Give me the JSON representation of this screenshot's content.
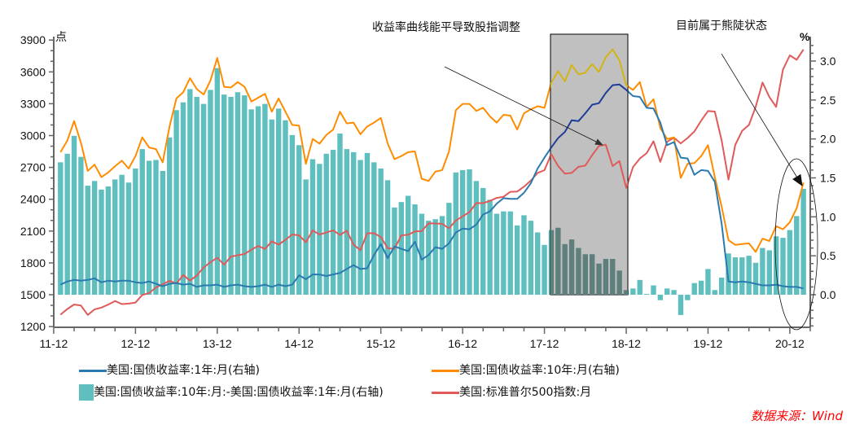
{
  "chart_data": {
    "type": "bar+line",
    "start_month": "2012-01",
    "frequency": "monthly",
    "left_axis": {
      "unit": "点",
      "ylim": [
        1200,
        3900
      ],
      "ticks": [
        1200,
        1500,
        1800,
        2100,
        2400,
        2700,
        3000,
        3300,
        3600,
        3900
      ]
    },
    "right_axis": {
      "unit": "%",
      "ylim": [
        -0.42,
        3.3
      ],
      "ticks": [
        "0.0",
        "0.5",
        "1.0",
        "1.5",
        "2.0",
        "2.5",
        "3.0"
      ]
    },
    "x_ticks": [
      "11-12",
      "12-12",
      "13-12",
      "14-12",
      "15-12",
      "16-12",
      "17-12",
      "18-12",
      "19-12",
      "20-12"
    ],
    "series": [
      {
        "name": "美国:国债收益率:1年:月(右轴)",
        "type": "line",
        "axis": "right",
        "color": "#2a7ab0",
        "highlight_color": "#1f3c99",
        "values": [
          0.13,
          0.17,
          0.19,
          0.18,
          0.19,
          0.21,
          0.16,
          0.18,
          0.17,
          0.18,
          0.18,
          0.16,
          0.15,
          0.17,
          0.14,
          0.11,
          0.14,
          0.15,
          0.13,
          0.14,
          0.1,
          0.12,
          0.12,
          0.13,
          0.1,
          0.12,
          0.13,
          0.11,
          0.1,
          0.11,
          0.13,
          0.1,
          0.13,
          0.11,
          0.13,
          0.25,
          0.2,
          0.26,
          0.26,
          0.24,
          0.26,
          0.28,
          0.33,
          0.38,
          0.33,
          0.34,
          0.51,
          0.65,
          0.47,
          0.62,
          0.59,
          0.56,
          0.68,
          0.45,
          0.51,
          0.61,
          0.59,
          0.66,
          0.8,
          0.85,
          0.84,
          0.9,
          1.03,
          1.07,
          1.17,
          1.24,
          1.23,
          1.23,
          1.31,
          1.43,
          1.62,
          1.76,
          1.89,
          2.01,
          2.09,
          2.24,
          2.23,
          2.33,
          2.44,
          2.46,
          2.59,
          2.69,
          2.7,
          2.63,
          2.55,
          2.54,
          2.4,
          2.39,
          2.21,
          1.92,
          1.96,
          1.76,
          1.75,
          1.54,
          1.6,
          1.59,
          1.45,
          0.91,
          0.17,
          0.16,
          0.17,
          0.16,
          0.14,
          0.12,
          0.12,
          0.13,
          0.11,
          0.1,
          0.1,
          0.08
        ]
      },
      {
        "name": "美国:国债收益率:10年:月(右轴)",
        "type": "line",
        "axis": "right",
        "color": "#ff8c00",
        "highlight_color": "#d4b414",
        "values": [
          1.83,
          1.98,
          2.23,
          1.95,
          1.59,
          1.67,
          1.51,
          1.57,
          1.65,
          1.72,
          1.62,
          1.78,
          2.02,
          1.89,
          1.87,
          1.7,
          2.16,
          2.52,
          2.6,
          2.78,
          2.64,
          2.57,
          2.75,
          3.04,
          2.67,
          2.66,
          2.73,
          2.67,
          2.48,
          2.53,
          2.58,
          2.35,
          2.52,
          2.35,
          2.18,
          2.17,
          1.68,
          2.0,
          1.94,
          2.05,
          2.12,
          2.35,
          2.2,
          2.21,
          2.06,
          2.16,
          2.21,
          2.27,
          1.94,
          1.74,
          1.78,
          1.83,
          1.84,
          1.49,
          1.46,
          1.58,
          1.6,
          1.84,
          2.37,
          2.45,
          2.45,
          2.36,
          2.4,
          2.29,
          2.21,
          2.31,
          2.3,
          2.12,
          2.33,
          2.38,
          2.42,
          2.4,
          2.72,
          2.87,
          2.74,
          2.95,
          2.83,
          2.85,
          2.96,
          2.86,
          3.05,
          3.15,
          3.01,
          2.69,
          2.63,
          2.73,
          2.41,
          2.51,
          2.14,
          2.0,
          2.02,
          1.5,
          1.68,
          1.69,
          1.78,
          1.92,
          1.51,
          1.13,
          0.7,
          0.64,
          0.65,
          0.66,
          0.55,
          0.72,
          0.69,
          0.88,
          0.84,
          0.93,
          1.11,
          1.44
        ]
      },
      {
        "name": "美国:国债收益率:10年:月:-美国:国债收益率:1年:月(右轴)",
        "type": "bar",
        "axis": "right",
        "color": "#5fbfbf",
        "highlight_color": "#5e7f7c",
        "values": [
          1.7,
          1.81,
          2.04,
          1.77,
          1.4,
          1.46,
          1.35,
          1.39,
          1.48,
          1.54,
          1.44,
          1.62,
          1.87,
          1.72,
          1.73,
          1.59,
          2.02,
          2.37,
          2.47,
          2.64,
          2.54,
          2.45,
          2.63,
          2.91,
          2.57,
          2.54,
          2.6,
          2.56,
          2.38,
          2.42,
          2.45,
          2.25,
          2.39,
          2.24,
          2.05,
          1.92,
          1.48,
          1.74,
          1.68,
          1.81,
          1.86,
          2.07,
          1.87,
          1.83,
          1.73,
          1.82,
          1.7,
          1.62,
          1.47,
          1.12,
          1.19,
          1.27,
          1.16,
          1.04,
          0.95,
          0.97,
          1.01,
          1.18,
          1.57,
          1.6,
          1.61,
          1.46,
          1.37,
          1.22,
          1.04,
          1.07,
          1.07,
          0.89,
          1.02,
          0.95,
          0.8,
          0.64,
          0.83,
          0.86,
          0.65,
          0.71,
          0.6,
          0.52,
          0.52,
          0.4,
          0.46,
          0.46,
          0.31,
          0.06,
          0.08,
          0.19,
          0.01,
          0.12,
          -0.07,
          0.08,
          0.06,
          -0.26,
          -0.07,
          0.15,
          0.18,
          0.33,
          0.06,
          0.22,
          0.53,
          0.48,
          0.48,
          0.5,
          0.41,
          0.6,
          0.57,
          0.75,
          0.73,
          0.83,
          1.01,
          1.36
        ]
      },
      {
        "name": "美国:标准普尔500指数:月",
        "type": "line",
        "axis": "left",
        "color": "#e05a5a",
        "highlight_color": "#e05a5a",
        "values": [
          1312,
          1366,
          1408,
          1398,
          1310,
          1362,
          1379,
          1407,
          1441,
          1412,
          1416,
          1426,
          1498,
          1515,
          1569,
          1598,
          1631,
          1606,
          1686,
          1633,
          1682,
          1757,
          1806,
          1848,
          1783,
          1859,
          1872,
          1884,
          1924,
          1960,
          1931,
          2003,
          1972,
          2018,
          2068,
          2059,
          1995,
          2105,
          2068,
          2086,
          2107,
          2063,
          2104,
          1972,
          1920,
          2079,
          2080,
          2044,
          1940,
          1932,
          2060,
          2065,
          2097,
          2099,
          2174,
          2171,
          2168,
          2126,
          2199,
          2239,
          2279,
          2364,
          2363,
          2384,
          2412,
          2423,
          2470,
          2472,
          2519,
          2575,
          2648,
          2674,
          2824,
          2714,
          2641,
          2648,
          2705,
          2718,
          2816,
          2902,
          2914,
          2712,
          2760,
          2507,
          2704,
          2784,
          2834,
          2946,
          2752,
          2942,
          2980,
          2926,
          2977,
          3038,
          3141,
          3231,
          3226,
          2954,
          2585,
          2912,
          3044,
          3100,
          3271,
          3500,
          3363,
          3270,
          3622,
          3756,
          3714,
          3811
        ]
      }
    ],
    "highlight_period": [
      "2018-01",
      "2018-12"
    ],
    "annotations": [
      {
        "text": "收益率曲线能平导致股指调整",
        "points_to": "2018-10"
      },
      {
        "text": "目前属于熊陡状态",
        "points_to": "2021-02"
      }
    ],
    "legend_placement": "bottom",
    "source": "数据来源：Wind"
  }
}
